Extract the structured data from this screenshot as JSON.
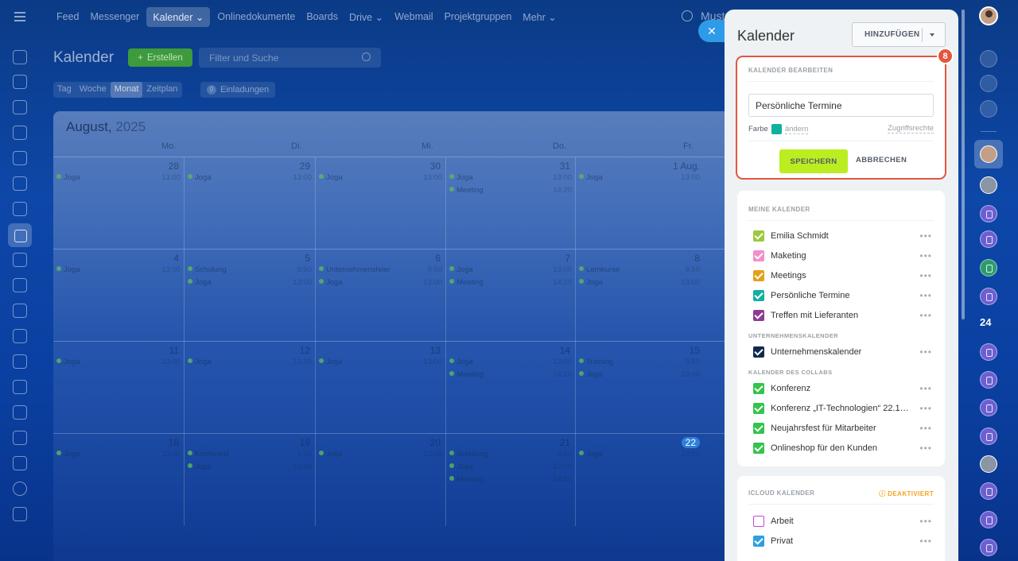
{
  "nav": {
    "items": [
      "Feed",
      "Messenger",
      "Kalender",
      "Onlinedokumente",
      "Boards",
      "Drive",
      "Webmail",
      "Projektgruppen",
      "Mehr"
    ],
    "active_index": 2,
    "search_text": "Must"
  },
  "page": {
    "title": "Kalender",
    "create_label": "Erstellen",
    "filter_placeholder": "Filter und Suche",
    "view_tabs": [
      "Tag",
      "Woche",
      "Monat",
      "Zeitplan"
    ],
    "active_view": "Monat",
    "invitations_count": "0",
    "invitations_label": "Einladungen"
  },
  "calendar": {
    "month": "August,",
    "year": "2025",
    "weekdays": [
      "Mo.",
      "Di.",
      "Mi.",
      "Do.",
      "Fr."
    ],
    "weeks": [
      {
        "days": [
          {
            "num": "28",
            "events": [
              {
                "title": "Joga",
                "time": "13:00"
              }
            ]
          },
          {
            "num": "29",
            "events": [
              {
                "title": "Joga",
                "time": "13:00"
              }
            ]
          },
          {
            "num": "30",
            "events": [
              {
                "title": "Joga",
                "time": "13:00"
              }
            ]
          },
          {
            "num": "31",
            "events": [
              {
                "title": "Joga",
                "time": "13:00"
              },
              {
                "title": "Meeting",
                "time": "14:20"
              }
            ]
          },
          {
            "num": "1 Aug.",
            "events": [
              {
                "title": "Joga",
                "time": "13:00"
              }
            ]
          }
        ]
      },
      {
        "days": [
          {
            "num": "4",
            "events": [
              {
                "title": "Joga",
                "time": "13:00"
              }
            ]
          },
          {
            "num": "5",
            "events": [
              {
                "title": "Schulung",
                "time": "9:50"
              },
              {
                "title": "Joga",
                "time": "13:00"
              }
            ]
          },
          {
            "num": "6",
            "events": [
              {
                "title": "Unternehmensfeier",
                "time": "9:50"
              },
              {
                "title": "Joga",
                "time": "13:00"
              }
            ]
          },
          {
            "num": "7",
            "events": [
              {
                "title": "Joga",
                "time": "13:00"
              },
              {
                "title": "Meeting",
                "time": "14:20"
              }
            ]
          },
          {
            "num": "8",
            "events": [
              {
                "title": "Lernkurse",
                "time": "9:50"
              },
              {
                "title": "Joga",
                "time": "13:00"
              }
            ]
          }
        ]
      },
      {
        "days": [
          {
            "num": "11",
            "events": [
              {
                "title": "Joga",
                "time": "13:00"
              }
            ]
          },
          {
            "num": "12",
            "events": [
              {
                "title": "Joga",
                "time": "13:00"
              }
            ]
          },
          {
            "num": "13",
            "events": [
              {
                "title": "Joga",
                "time": "13:00"
              }
            ]
          },
          {
            "num": "14",
            "events": [
              {
                "title": "Joga",
                "time": "13:00"
              },
              {
                "title": "Meeting",
                "time": "14:20"
              }
            ]
          },
          {
            "num": "15",
            "events": [
              {
                "title": "Training",
                "time": "9:50"
              },
              {
                "title": "Joga",
                "time": "13:00"
              }
            ]
          }
        ]
      },
      {
        "days": [
          {
            "num": "18",
            "events": [
              {
                "title": "Joga",
                "time": "13:00"
              }
            ]
          },
          {
            "num": "19",
            "events": [
              {
                "title": "Konferenz",
                "time": "9:50"
              },
              {
                "title": "Joga",
                "time": "13:00"
              }
            ]
          },
          {
            "num": "20",
            "events": [
              {
                "title": "Joga",
                "time": "13:00"
              }
            ]
          },
          {
            "num": "21",
            "events": [
              {
                "title": "Schulung",
                "time": "9:50"
              },
              {
                "title": "Joga",
                "time": "13:00"
              },
              {
                "title": "Meeting",
                "time": "14:20"
              }
            ]
          },
          {
            "num": "22",
            "events": [
              {
                "title": "Joga",
                "time": "13:00"
              }
            ],
            "today": true
          }
        ]
      }
    ]
  },
  "panel": {
    "title": "Kalender",
    "add_label": "HINZUFÜGEN",
    "badge": "8",
    "edit": {
      "section_title": "KALENDER BEARBEITEN",
      "name_value": "Persönliche Termine",
      "color_label": "Farbe",
      "color": "#12b0a0",
      "change_label": "ändern",
      "access_label": "Zugriffsrechte",
      "save_label": "SPEICHERN",
      "cancel_label": "ABBRECHEN"
    },
    "my_calendars": {
      "title": "MEINE KALENDER",
      "items": [
        {
          "name": "Emilia Schmidt",
          "color": "#9cc93c"
        },
        {
          "name": "Maketing",
          "color": "#f28fc8"
        },
        {
          "name": "Meetings",
          "color": "#e1a21a"
        },
        {
          "name": "Persönliche Termine",
          "color": "#12b0a0"
        },
        {
          "name": "Treffen mit Lieferanten",
          "color": "#8e3b96"
        }
      ]
    },
    "company_calendars": {
      "title": "UNTERNEHMENSKALENDER",
      "items": [
        {
          "name": "Unternehmenskalender",
          "color": "#0f2a4f"
        }
      ]
    },
    "collab_calendars": {
      "title": "KALENDER DES COLLABS",
      "items": [
        {
          "name": "Konferenz",
          "color": "#33c44c"
        },
        {
          "name": "Konferenz „IT-Technologien“ 22.12.2025",
          "color": "#33c44c"
        },
        {
          "name": "Neujahrsfest für Mitarbeiter",
          "color": "#33c44c"
        },
        {
          "name": "Onlineshop für den Kunden",
          "color": "#33c44c"
        }
      ]
    },
    "icloud": {
      "title": "ICLOUD KALENDER",
      "status": "DEAKTIVIERT",
      "items": [
        {
          "name": "Arbeit",
          "color": "#c24bd9",
          "checked": false
        },
        {
          "name": "Privat",
          "color": "#2e9fe0",
          "checked": true
        }
      ]
    }
  },
  "right_rail": {
    "counter_label": "24"
  }
}
